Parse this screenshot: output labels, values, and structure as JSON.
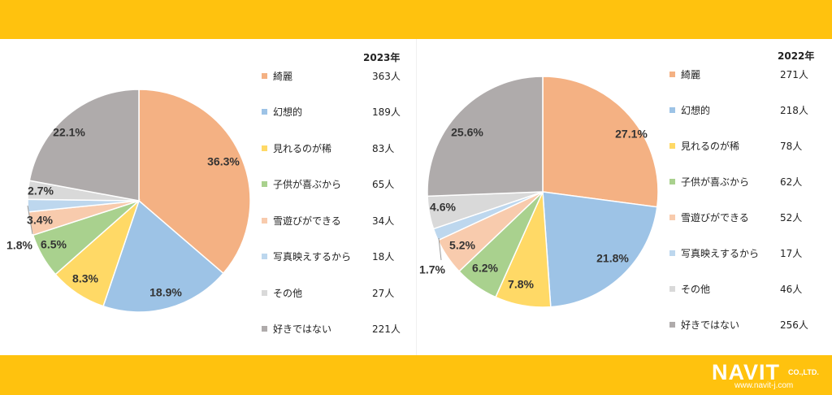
{
  "colors": {
    "band": "#FFC20E",
    "slices": [
      "#F4B183",
      "#9DC3E6",
      "#FFD966",
      "#A9D18E",
      "#F8CBAD",
      "#BDD7EE",
      "#D9D9D9",
      "#AFABAB"
    ]
  },
  "logo": {
    "brand": "NAVIT",
    "suffix": "CO.,LTD.",
    "url": "www.navit-j.com"
  },
  "chart_data": [
    {
      "type": "pie",
      "title": "2023年",
      "categories": [
        "綺麗",
        "幻想的",
        "見れるのが稀",
        "子供が喜ぶから",
        "雪遊びができる",
        "写真映えするから",
        "その他",
        "好きではない"
      ],
      "counts": [
        "363人",
        "189人",
        "83人",
        "65人",
        "34人",
        "18人",
        "27人",
        "221人"
      ],
      "values": [
        36.3,
        18.9,
        8.3,
        6.5,
        3.4,
        1.8,
        2.7,
        22.1
      ],
      "labels": [
        "36.3%",
        "18.9%",
        "8.3%",
        "6.5%",
        "3.4%",
        "1.8%",
        "2.7%",
        "22.1%"
      ],
      "legend": "right"
    },
    {
      "type": "pie",
      "title": "2022年",
      "categories": [
        "綺麗",
        "幻想的",
        "見れるのが稀",
        "子供が喜ぶから",
        "雪遊びができる",
        "写真映えするから",
        "その他",
        "好きではない"
      ],
      "counts": [
        "271人",
        "218人",
        "78人",
        "62人",
        "52人",
        "17人",
        "46人",
        "256人"
      ],
      "values": [
        27.1,
        21.8,
        7.8,
        6.2,
        5.2,
        1.7,
        4.6,
        25.6
      ],
      "labels": [
        "27.1%",
        "21.8%",
        "7.8%",
        "6.2%",
        "5.2%",
        "1.7%",
        "4.6%",
        "25.6%"
      ],
      "legend": "right"
    }
  ]
}
